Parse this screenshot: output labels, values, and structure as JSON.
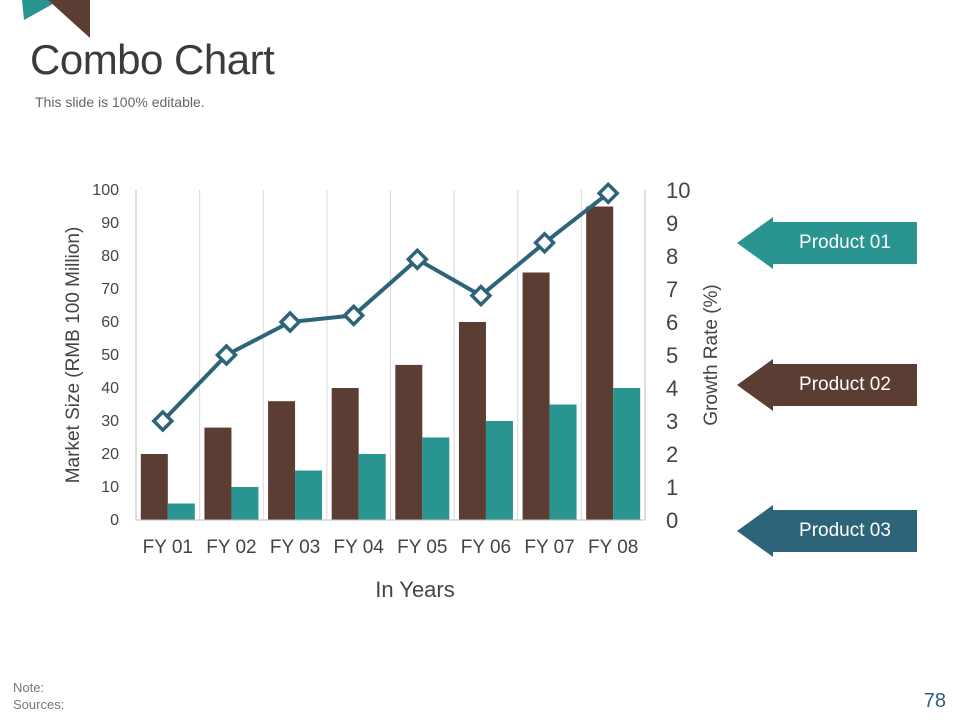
{
  "slide": {
    "title": "Combo Chart",
    "subtitle": "This slide is 100% editable.",
    "note_label": "Note:",
    "sources_label": "Sources:",
    "page_number": "78"
  },
  "colors": {
    "product01": "#2a9490",
    "product02": "#5c3d34",
    "product03": "#2e6479",
    "line": "#2e6479",
    "grid": "#d9d9d9"
  },
  "legend": [
    {
      "label": "Product 01",
      "color": "#2a9490"
    },
    {
      "label": "Product 02",
      "color": "#5c3d34"
    },
    {
      "label": "Product 03",
      "color": "#2e6479"
    }
  ],
  "chart_data": {
    "type": "bar",
    "categories": [
      "FY 01",
      "FY 02",
      "FY 03",
      "FY 04",
      "FY 05",
      "FY 06",
      "FY 07",
      "FY 08"
    ],
    "series": [
      {
        "name": "Product 02",
        "axis": "left",
        "type": "bar",
        "values": [
          20,
          28,
          36,
          40,
          47,
          60,
          75,
          95
        ]
      },
      {
        "name": "Product 01",
        "axis": "left",
        "type": "bar",
        "values": [
          5,
          10,
          15,
          20,
          25,
          30,
          35,
          40
        ]
      },
      {
        "name": "Product 03",
        "axis": "right",
        "type": "line",
        "values": [
          3,
          5,
          6,
          6.2,
          7.9,
          6.8,
          8.4,
          9.9
        ]
      }
    ],
    "xlabel": "In Years",
    "ylabel": "Market Size (RMB 100 Million)",
    "y2label": "Growth Rate (%)",
    "ylim": [
      0,
      100
    ],
    "y2lim": [
      0,
      10
    ],
    "yticks": [
      "0",
      "10",
      "20",
      "30",
      "40",
      "50",
      "60",
      "70",
      "80",
      "90",
      "100"
    ],
    "y2ticks": [
      "0",
      "1",
      "2",
      "3",
      "4",
      "5",
      "6",
      "7",
      "8",
      "9",
      "10"
    ],
    "grid": "vertical"
  }
}
